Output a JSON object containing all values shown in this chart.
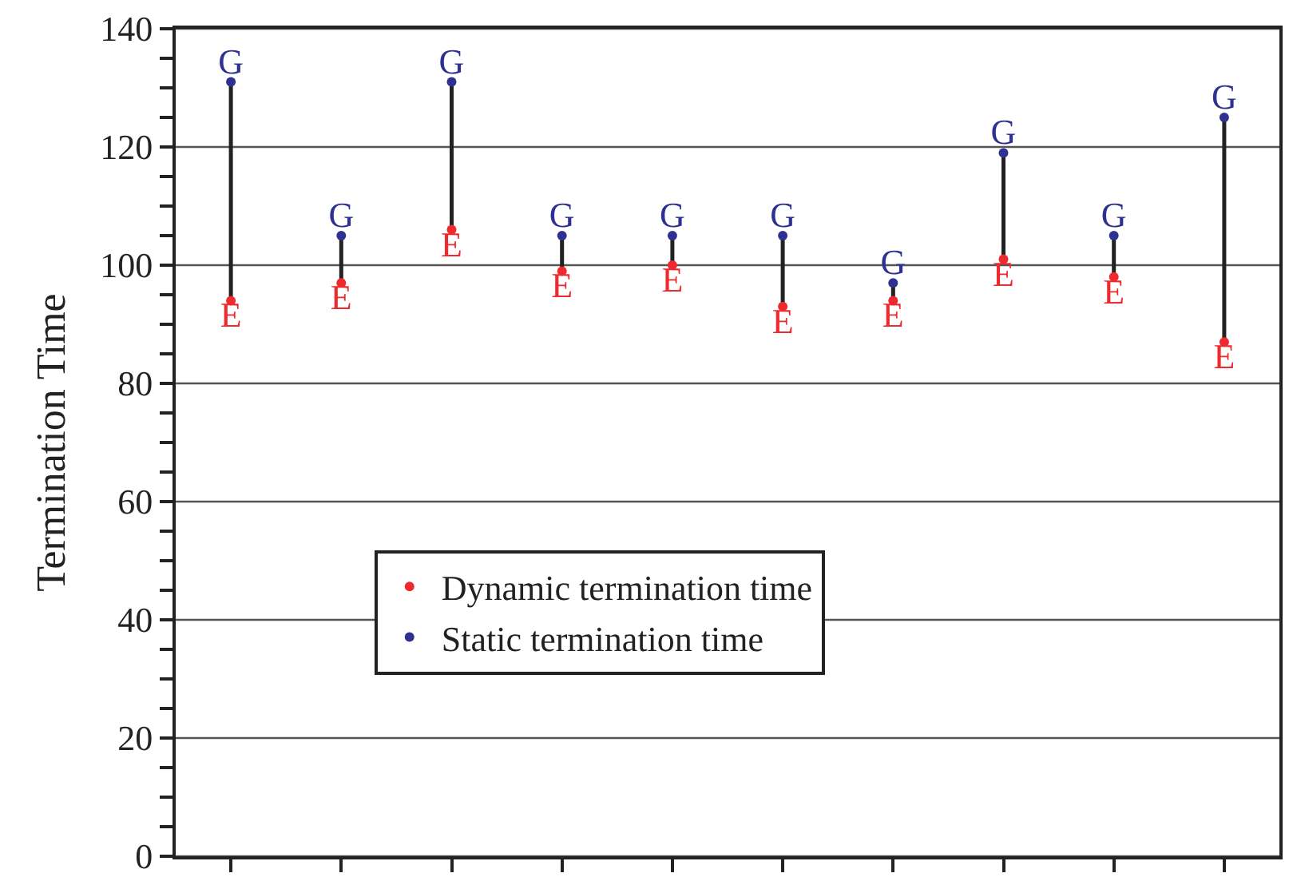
{
  "chart_data": {
    "type": "scatter",
    "ylabel": "Termination Time",
    "categories": [
      null,
      null,
      null,
      null,
      null,
      null,
      null,
      null,
      null,
      null
    ],
    "series": [
      {
        "name": "Dynamic termination time",
        "color": "#ee2a2e",
        "values": [
          94,
          97,
          106,
          99,
          100,
          93,
          94,
          101,
          98,
          87
        ],
        "value_labels": [
          "E",
          "E",
          "E",
          "E",
          "E",
          "E",
          "E",
          "E",
          "E",
          "E"
        ]
      },
      {
        "name": "Static termination time",
        "color": "#2e3192",
        "values": [
          131,
          105,
          131,
          105,
          105,
          105,
          97,
          119,
          105,
          125
        ],
        "value_labels": [
          "G",
          "G",
          "G",
          "G",
          "G",
          "G",
          "G",
          "G",
          "G",
          "G"
        ]
      }
    ],
    "ylim": [
      0,
      140
    ],
    "yticks": [
      0,
      {
        "value": 5,
        "label": null
      },
      {
        "value": 10,
        "label": null
      },
      {
        "value": 15,
        "label": null
      },
      20,
      {
        "value": 25,
        "label": null
      },
      {
        "value": 30,
        "label": null
      },
      {
        "value": 35,
        "label": null
      },
      40,
      {
        "value": 45,
        "label": null
      },
      {
        "value": 50,
        "label": null
      },
      {
        "value": 55,
        "label": null
      },
      60,
      {
        "value": 65,
        "label": null
      },
      {
        "value": 70,
        "label": null
      },
      {
        "value": 75,
        "label": null
      },
      80,
      {
        "value": 85,
        "label": null
      },
      {
        "value": 90,
        "label": null
      },
      {
        "value": 95,
        "label": null
      },
      100,
      {
        "value": 105,
        "label": null
      },
      {
        "value": 110,
        "label": null
      },
      {
        "value": 115,
        "label": null
      },
      120,
      {
        "value": 125,
        "label": null
      },
      {
        "value": 130,
        "label": null
      },
      {
        "value": 135,
        "label": null
      },
      140
    ],
    "grid": "y",
    "legend": "bottom left",
    "marker": "circle",
    "tick_labels": "y"
  }
}
